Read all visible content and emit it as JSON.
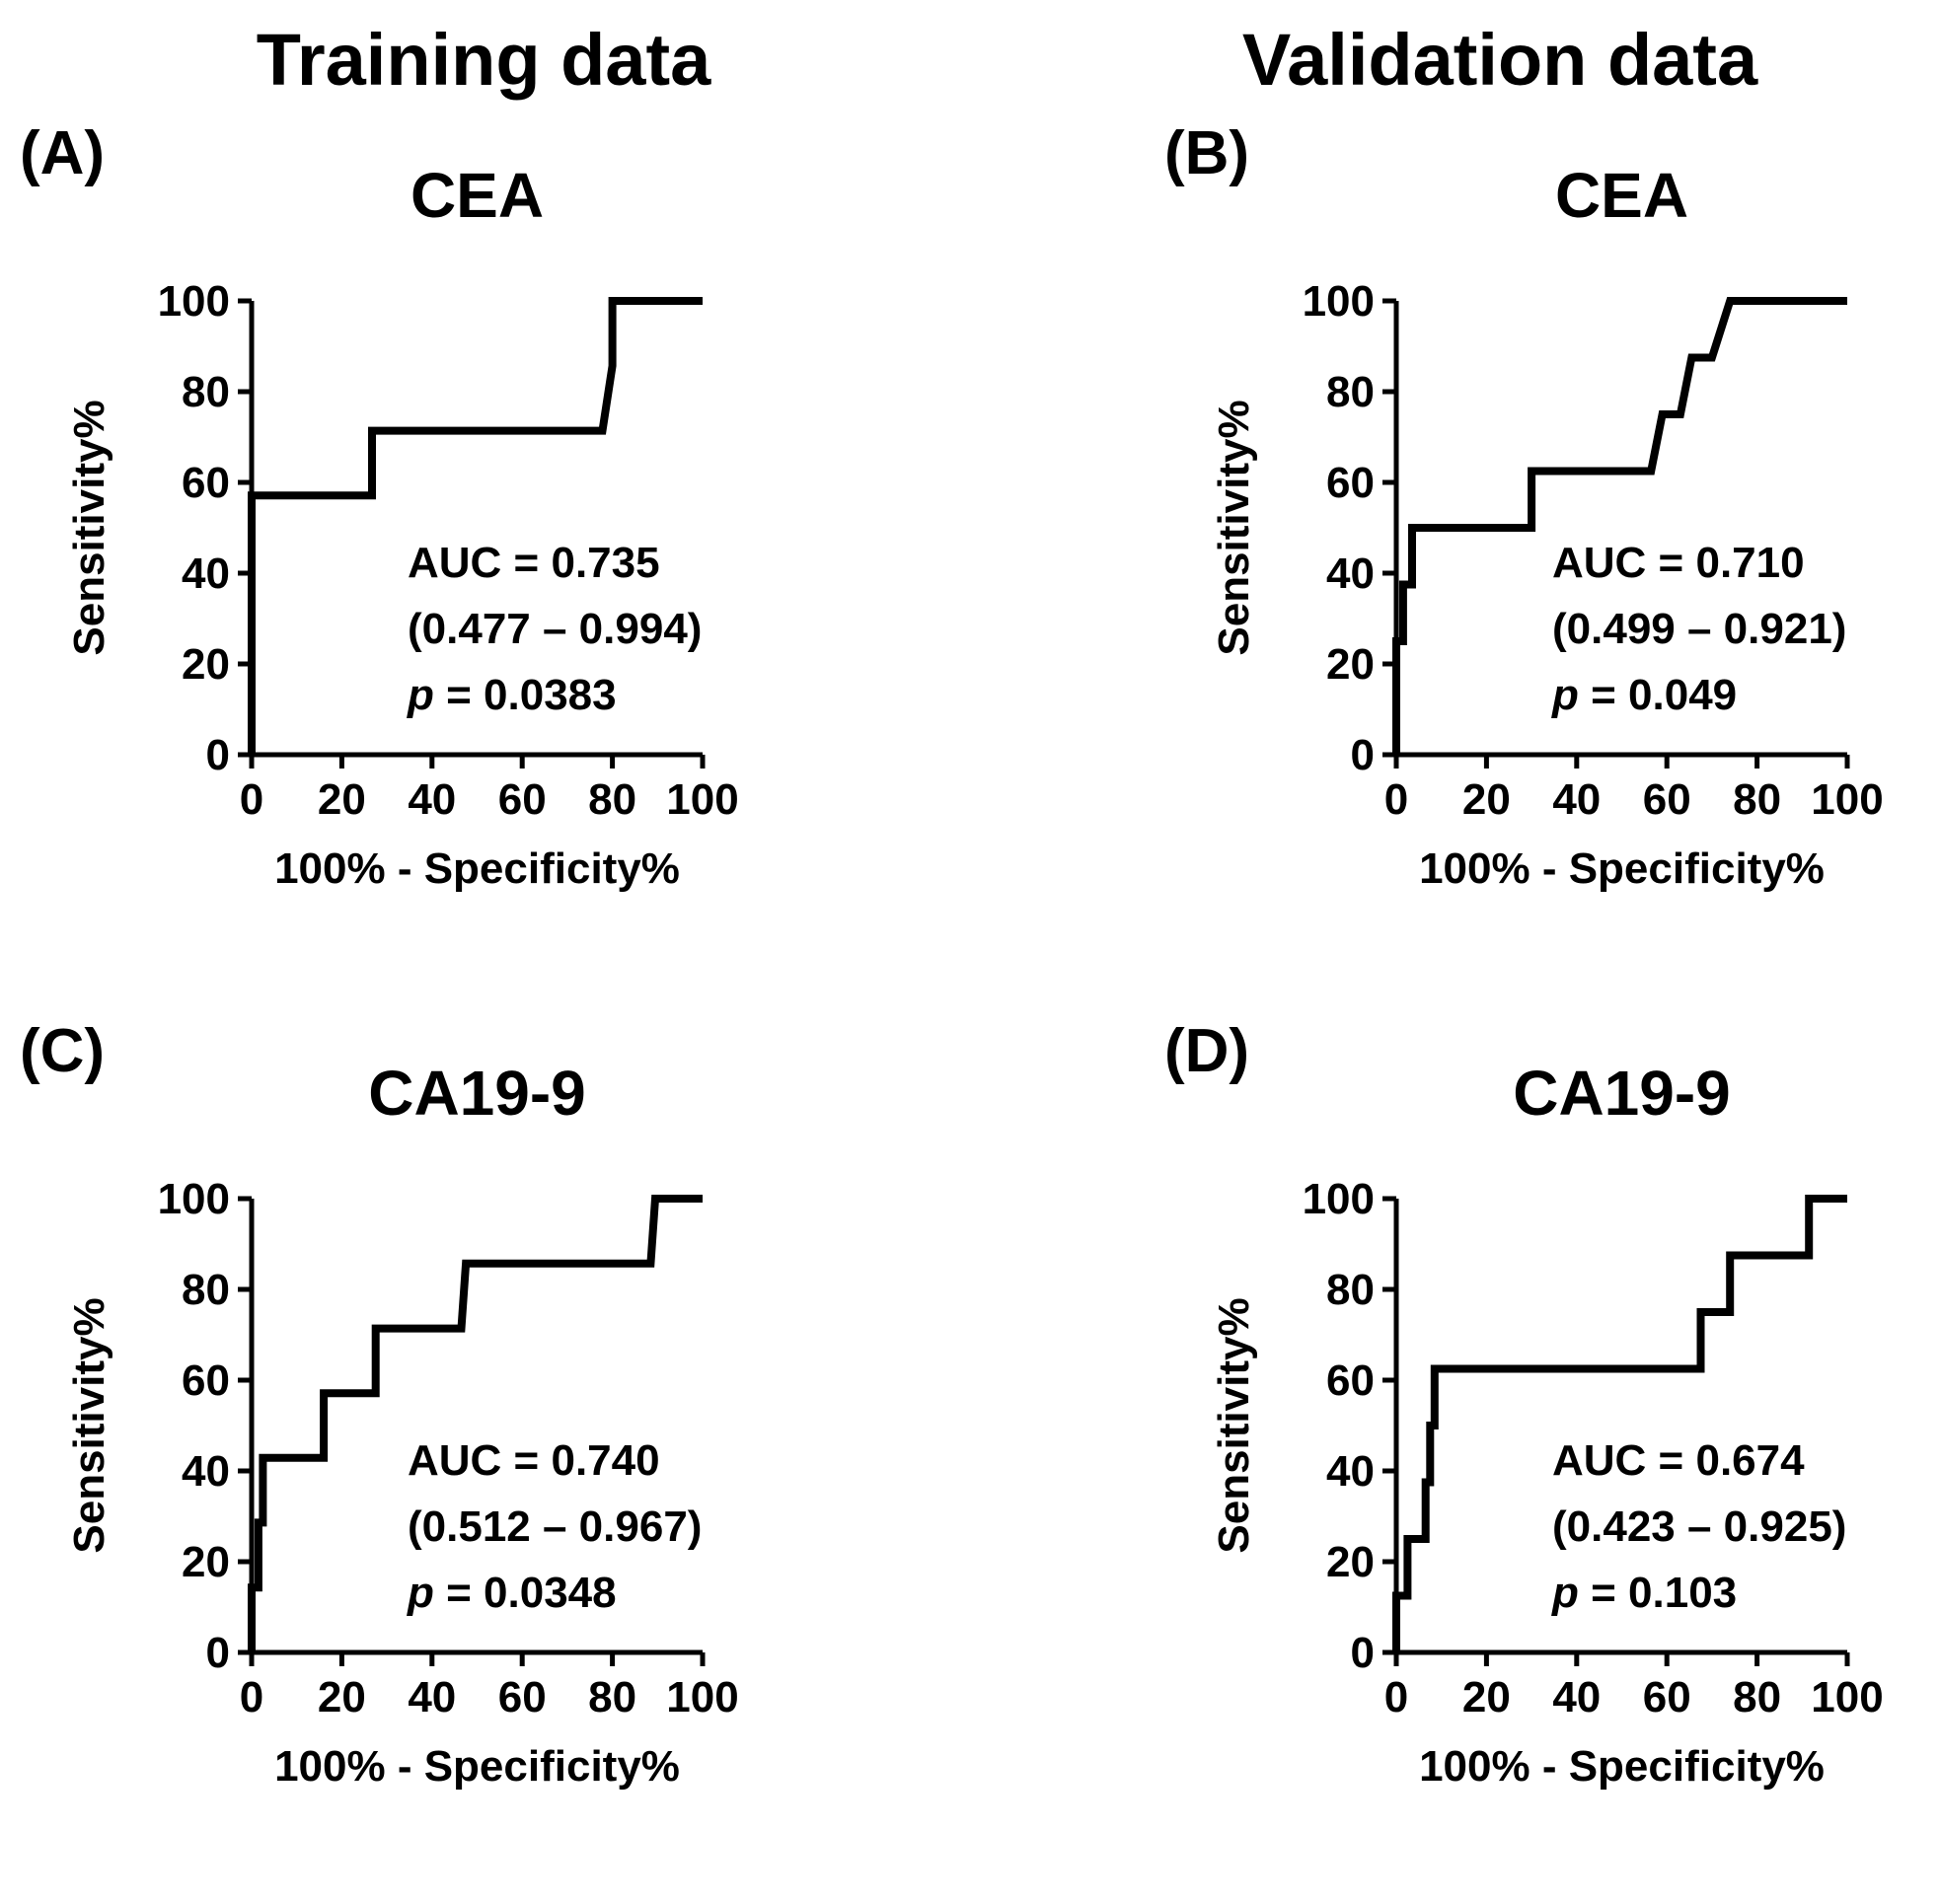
{
  "figure": {
    "column_titles": [
      "Training data",
      "Validation data"
    ]
  },
  "chart_data": [
    {
      "type": "line",
      "panel_label": "(A)",
      "title": "CEA",
      "xlabel": "100% - Specificity%",
      "ylabel": "Sensitivity%",
      "xlim": [
        0,
        100
      ],
      "ylim": [
        0,
        100
      ],
      "xticks": [
        0,
        20,
        40,
        60,
        80,
        100
      ],
      "yticks": [
        0,
        20,
        40,
        60,
        80,
        100
      ],
      "series": [
        {
          "name": "CEA training ROC",
          "points": [
            [
              0,
              0
            ],
            [
              0,
              57.1
            ],
            [
              26.7,
              57.1
            ],
            [
              26.7,
              71.4
            ],
            [
              77.8,
              71.4
            ],
            [
              80,
              85.7
            ],
            [
              80,
              100
            ],
            [
              100,
              100
            ]
          ]
        }
      ],
      "annotation": {
        "auc": "AUC = 0.735",
        "ci": "(0.477 – 0.994)",
        "p_label": "p",
        "p_value": " = 0.0383"
      }
    },
    {
      "type": "line",
      "panel_label": "(B)",
      "title": "CEA",
      "xlabel": "100% - Specificity%",
      "ylabel": "Sensitivity%",
      "xlim": [
        0,
        100
      ],
      "ylim": [
        0,
        100
      ],
      "xticks": [
        0,
        20,
        40,
        60,
        80,
        100
      ],
      "yticks": [
        0,
        20,
        40,
        60,
        80,
        100
      ],
      "series": [
        {
          "name": "CEA validation ROC",
          "points": [
            [
              0,
              0
            ],
            [
              0,
              25
            ],
            [
              1.5,
              25
            ],
            [
              1.5,
              37.5
            ],
            [
              3.5,
              37.5
            ],
            [
              3.5,
              50
            ],
            [
              30,
              50
            ],
            [
              30,
              62.5
            ],
            [
              56.5,
              62.5
            ],
            [
              59,
              75
            ],
            [
              63,
              75
            ],
            [
              65.5,
              87.5
            ],
            [
              70,
              87.5
            ],
            [
              74,
              100
            ],
            [
              100,
              100
            ]
          ]
        }
      ],
      "annotation": {
        "auc": "AUC = 0.710",
        "ci": "(0.499 – 0.921)",
        "p_label": "p",
        "p_value": " = 0.049"
      }
    },
    {
      "type": "line",
      "panel_label": "(C)",
      "title": "CA19-9",
      "xlabel": "100% - Specificity%",
      "ylabel": "Sensitivity%",
      "xlim": [
        0,
        100
      ],
      "ylim": [
        0,
        100
      ],
      "xticks": [
        0,
        20,
        40,
        60,
        80,
        100
      ],
      "yticks": [
        0,
        20,
        40,
        60,
        80,
        100
      ],
      "series": [
        {
          "name": "CA19-9 training ROC",
          "points": [
            [
              0,
              0
            ],
            [
              0,
              14.3
            ],
            [
              1.5,
              14.3
            ],
            [
              1.5,
              28.6
            ],
            [
              2.5,
              28.6
            ],
            [
              2.5,
              42.9
            ],
            [
              16,
              42.9
            ],
            [
              16,
              57.1
            ],
            [
              27.5,
              57.1
            ],
            [
              27.5,
              71.4
            ],
            [
              46.5,
              71.4
            ],
            [
              47.5,
              85.7
            ],
            [
              88.5,
              85.7
            ],
            [
              89.5,
              100
            ],
            [
              100,
              100
            ]
          ]
        }
      ],
      "annotation": {
        "auc": "AUC = 0.740",
        "ci": "(0.512 – 0.967)",
        "p_label": "p",
        "p_value": " = 0.0348"
      }
    },
    {
      "type": "line",
      "panel_label": "(D)",
      "title": "CA19-9",
      "xlabel": "100% - Specificity%",
      "ylabel": "Sensitivity%",
      "xlim": [
        0,
        100
      ],
      "ylim": [
        0,
        100
      ],
      "xticks": [
        0,
        20,
        40,
        60,
        80,
        100
      ],
      "yticks": [
        0,
        20,
        40,
        60,
        80,
        100
      ],
      "series": [
        {
          "name": "CA19-9 validation ROC",
          "points": [
            [
              0,
              0
            ],
            [
              0,
              12.5
            ],
            [
              2.5,
              12.5
            ],
            [
              2.5,
              25
            ],
            [
              6.5,
              25
            ],
            [
              6.5,
              37.5
            ],
            [
              7.5,
              37.5
            ],
            [
              7.5,
              50
            ],
            [
              8.5,
              50
            ],
            [
              8.5,
              62.5
            ],
            [
              67.5,
              62.5
            ],
            [
              67.5,
              75
            ],
            [
              74,
              75
            ],
            [
              74,
              87.5
            ],
            [
              91.5,
              87.5
            ],
            [
              91.5,
              100
            ],
            [
              100,
              100
            ]
          ]
        }
      ],
      "annotation": {
        "auc": "AUC = 0.674",
        "ci": "(0.423 – 0.925)",
        "p_label": "p",
        "p_value": " = 0.103"
      }
    }
  ]
}
